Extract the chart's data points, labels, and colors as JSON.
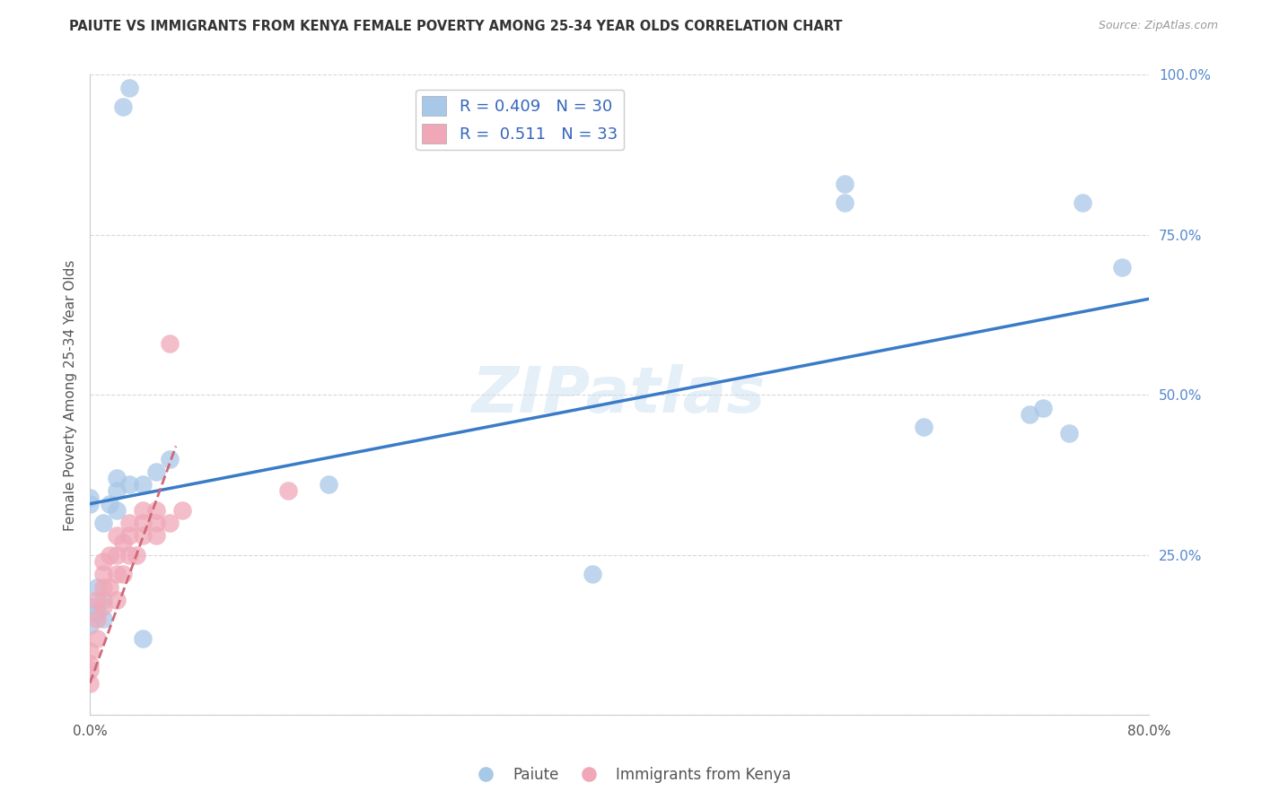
{
  "title": "PAIUTE VS IMMIGRANTS FROM KENYA FEMALE POVERTY AMONG 25-34 YEAR OLDS CORRELATION CHART",
  "source": "Source: ZipAtlas.com",
  "ylabel": "Female Poverty Among 25-34 Year Olds",
  "xlim": [
    0.0,
    0.8
  ],
  "ylim": [
    0.0,
    1.0
  ],
  "xticks": [
    0.0,
    0.1,
    0.2,
    0.3,
    0.4,
    0.5,
    0.6,
    0.7,
    0.8
  ],
  "xticklabels": [
    "0.0%",
    "",
    "",
    "",
    "",
    "",
    "",
    "",
    "80.0%"
  ],
  "ytick_positions": [
    0.0,
    0.25,
    0.5,
    0.75,
    1.0
  ],
  "yticklabels": [
    "",
    "25.0%",
    "50.0%",
    "75.0%",
    "100.0%"
  ],
  "legend_r_blue": "0.409",
  "legend_n_blue": "30",
  "legend_r_pink": "0.511",
  "legend_n_pink": "33",
  "blue_color": "#a8c8e8",
  "pink_color": "#f0a8b8",
  "trendline_blue_color": "#3a7bc8",
  "trendline_pink_color": "#d06878",
  "grid_color": "#d8d8d8",
  "watermark": "ZIPatlas",
  "paiute_x": [
    0.0,
    0.0,
    0.0,
    0.0,
    0.005,
    0.005,
    0.01,
    0.01,
    0.01,
    0.015,
    0.02,
    0.02,
    0.02,
    0.025,
    0.03,
    0.03,
    0.04,
    0.04,
    0.05,
    0.06,
    0.18,
    0.38,
    0.57,
    0.57,
    0.63,
    0.71,
    0.72,
    0.74,
    0.75,
    0.78
  ],
  "paiute_y": [
    0.33,
    0.34,
    0.14,
    0.17,
    0.16,
    0.2,
    0.15,
    0.18,
    0.3,
    0.33,
    0.35,
    0.37,
    0.32,
    0.95,
    0.98,
    0.36,
    0.36,
    0.12,
    0.38,
    0.4,
    0.36,
    0.22,
    0.8,
    0.83,
    0.45,
    0.47,
    0.48,
    0.44,
    0.8,
    0.7
  ],
  "kenya_x": [
    0.0,
    0.0,
    0.0,
    0.0,
    0.005,
    0.005,
    0.005,
    0.01,
    0.01,
    0.01,
    0.01,
    0.015,
    0.015,
    0.02,
    0.02,
    0.02,
    0.02,
    0.025,
    0.025,
    0.03,
    0.03,
    0.03,
    0.035,
    0.04,
    0.04,
    0.04,
    0.05,
    0.05,
    0.05,
    0.06,
    0.06,
    0.07,
    0.15
  ],
  "kenya_y": [
    0.05,
    0.07,
    0.08,
    0.1,
    0.12,
    0.15,
    0.18,
    0.17,
    0.2,
    0.22,
    0.24,
    0.2,
    0.25,
    0.18,
    0.22,
    0.25,
    0.28,
    0.22,
    0.27,
    0.25,
    0.28,
    0.3,
    0.25,
    0.28,
    0.3,
    0.32,
    0.28,
    0.3,
    0.32,
    0.3,
    0.58,
    0.32,
    0.35
  ],
  "trendline_blue_x0": 0.0,
  "trendline_blue_x1": 0.8,
  "trendline_blue_y0": 0.33,
  "trendline_blue_y1": 0.65,
  "trendline_pink_x0": 0.0,
  "trendline_pink_x1": 0.065,
  "trendline_pink_y0": 0.05,
  "trendline_pink_y1": 0.42
}
